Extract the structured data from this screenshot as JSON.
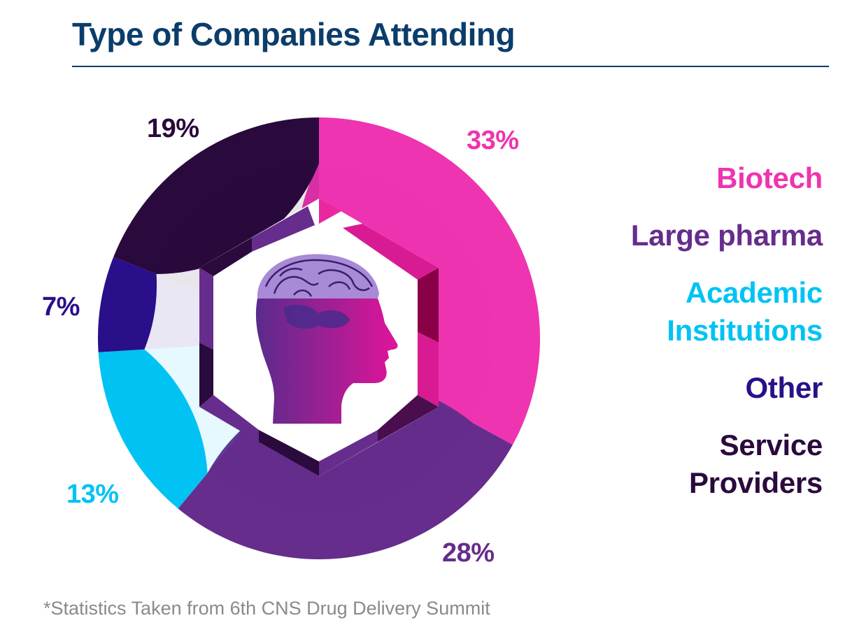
{
  "chart_data": {
    "type": "pie",
    "title": "Type of Companies Attending",
    "slices": [
      {
        "name": "Biotech",
        "value": 33,
        "label": "33%",
        "color": "#ee34b0",
        "dark": "#a3067a"
      },
      {
        "name": "Large pharma",
        "value": 28,
        "label": "28%",
        "color": "#662d8c",
        "dark": "#4a1d6a"
      },
      {
        "name": "Academic Institutions",
        "value": 13,
        "label": "13%",
        "color": "#00c3f3",
        "dark": "#0087c9"
      },
      {
        "name": "Other",
        "value": 7,
        "label": "7%",
        "color": "#2a0f8a",
        "dark": "#14064f"
      },
      {
        "name": "Service Providers",
        "value": 19,
        "label": "19%",
        "color": "#2a0a3d",
        "dark": "#14031f"
      }
    ],
    "legend_position": "right"
  },
  "legend": {
    "biotech": "Biotech",
    "large_pharma": "Large pharma",
    "academic_line1": "Academic",
    "academic_line2": "Institutions",
    "other": "Other",
    "service_line1": "Service",
    "service_line2": "Providers"
  },
  "footnote": "*Statistics Taken from 6th CNS Drug Delivery Summit"
}
